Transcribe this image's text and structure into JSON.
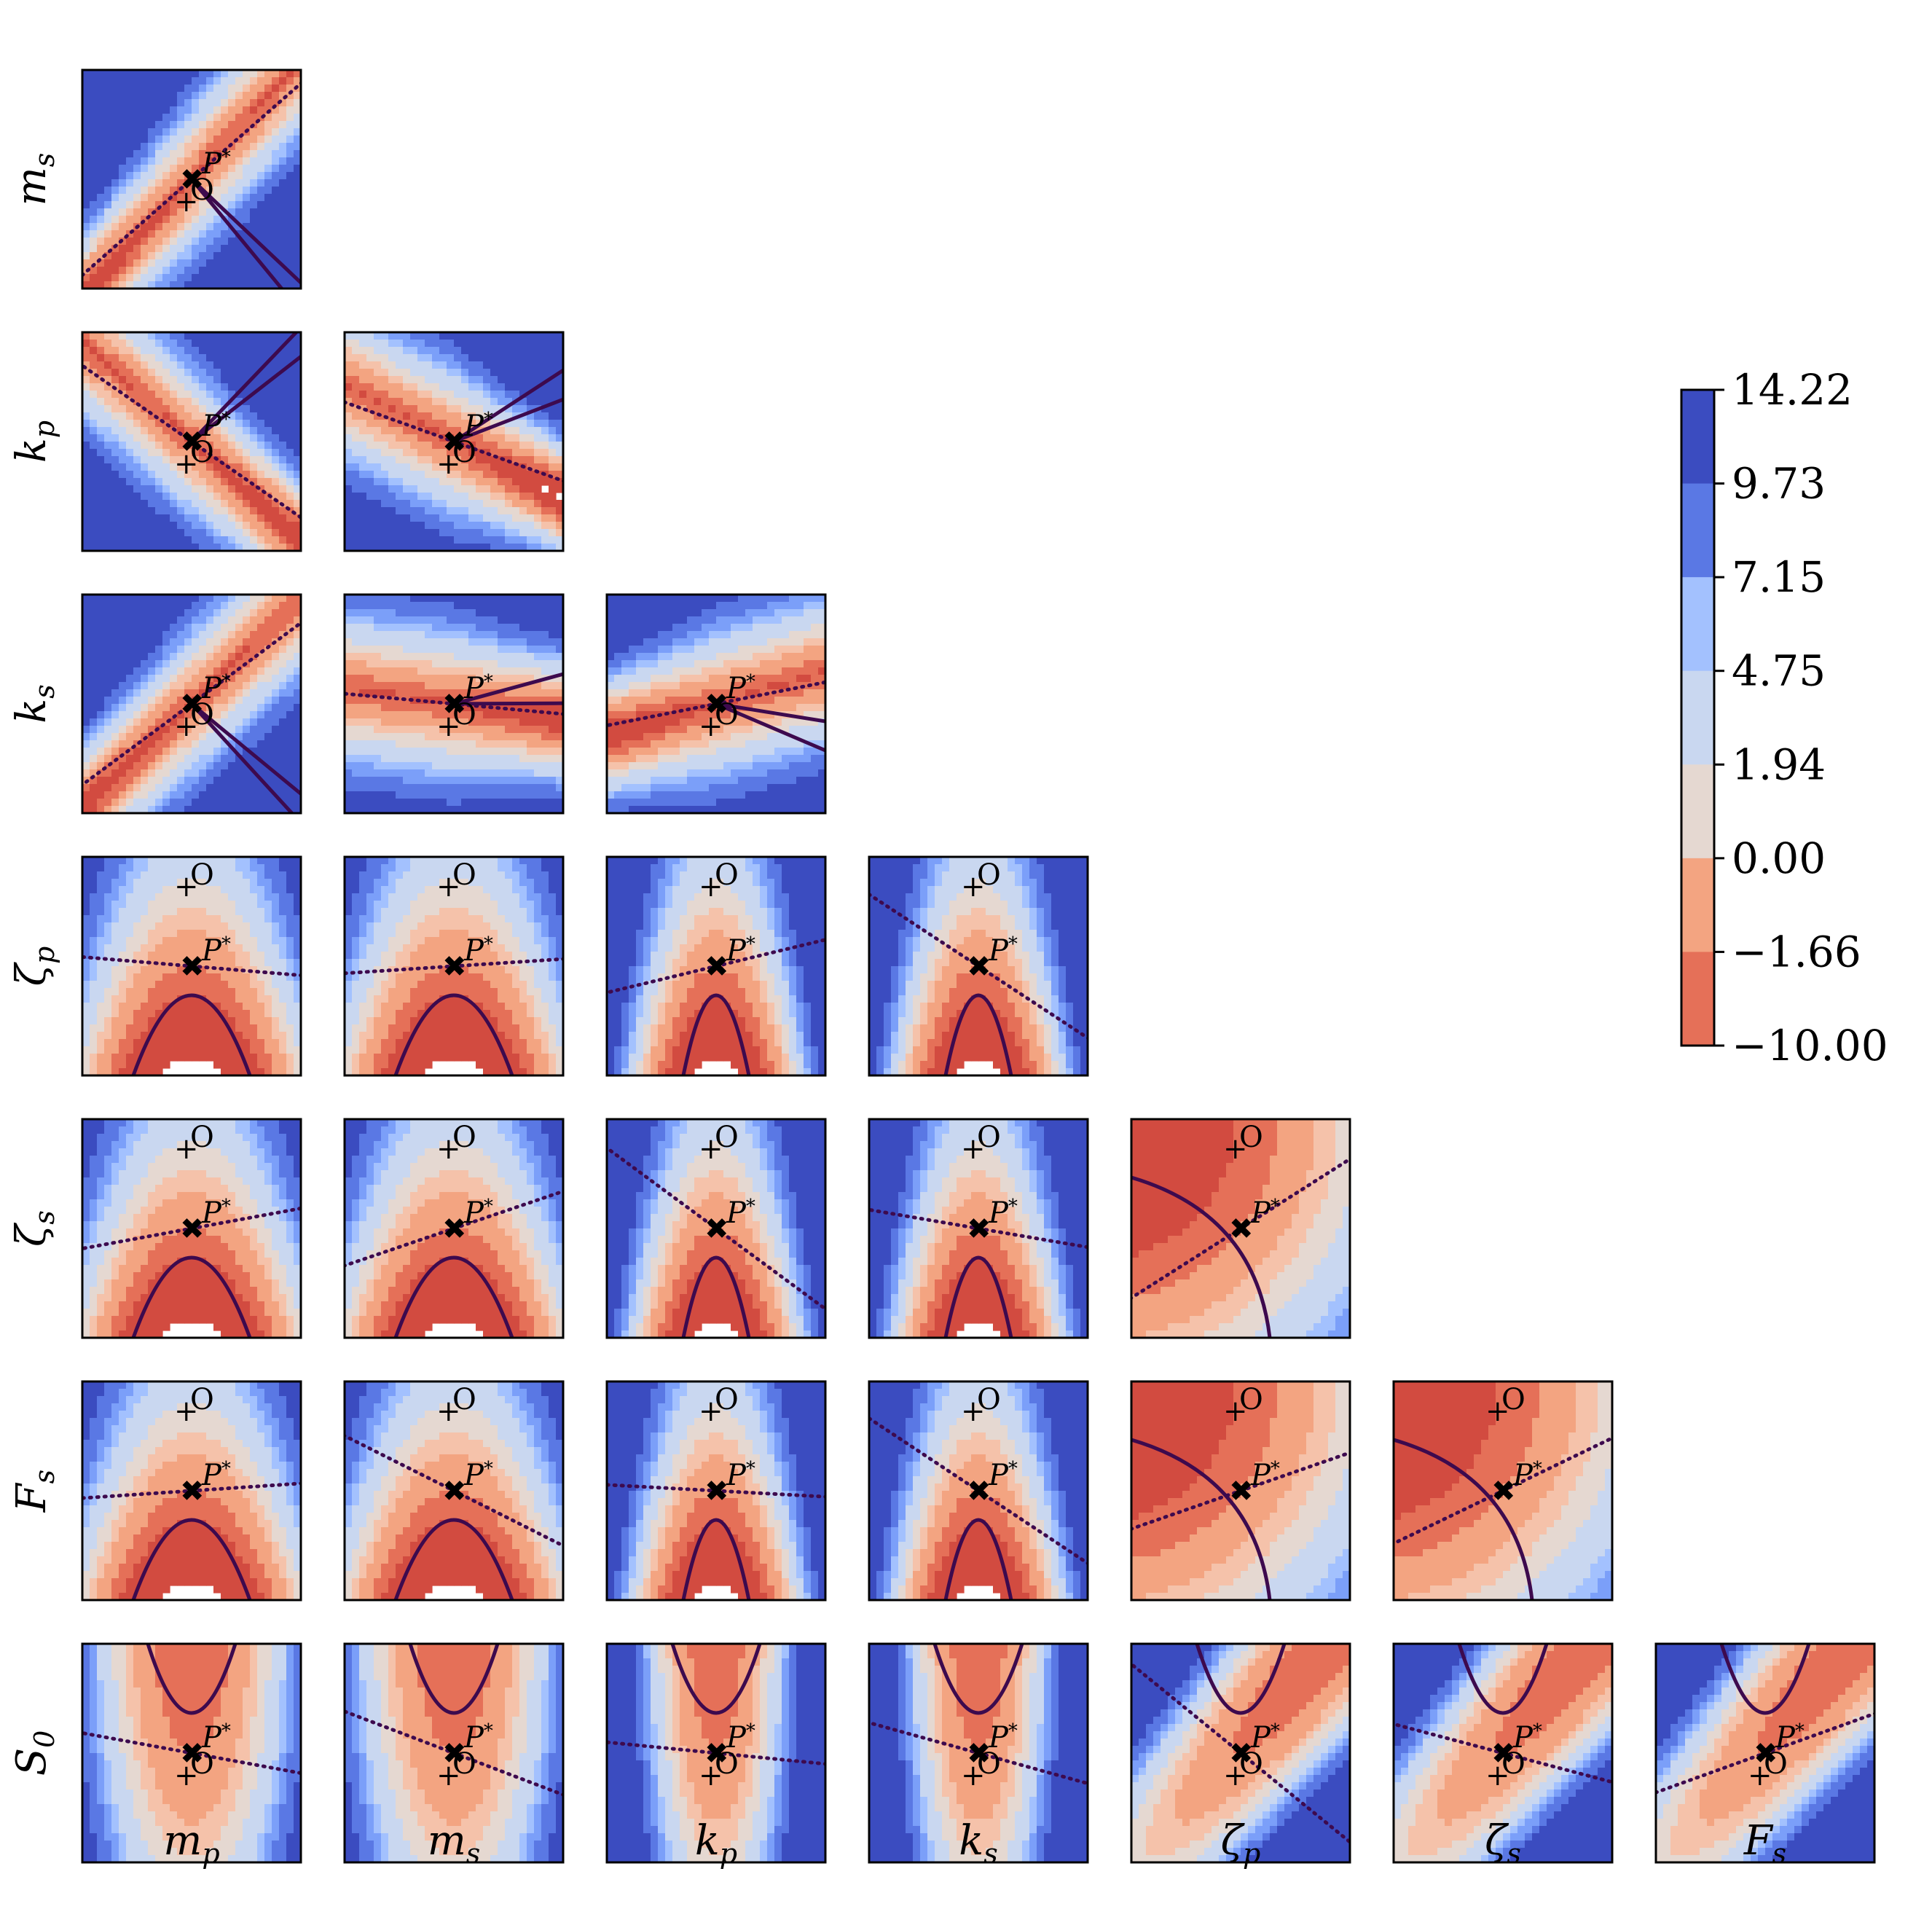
{
  "chart_data": {
    "type": "heatmap",
    "title": "",
    "parameters": [
      "m_p",
      "m_s",
      "k_p",
      "k_s",
      "ζ_p",
      "ζ_s",
      "F_s",
      "S_0"
    ],
    "x_axis_labels": [
      {
        "base": "m",
        "sub": "p"
      },
      {
        "base": "m",
        "sub": "s"
      },
      {
        "base": "k",
        "sub": "p"
      },
      {
        "base": "k",
        "sub": "s"
      },
      {
        "base": "ζ",
        "sub": "p"
      },
      {
        "base": "ζ",
        "sub": "s"
      },
      {
        "base": "F",
        "sub": "s"
      }
    ],
    "y_axis_labels": [
      {
        "base": "m",
        "sub": "s"
      },
      {
        "base": "k",
        "sub": "p"
      },
      {
        "base": "k",
        "sub": "s"
      },
      {
        "base": "ζ",
        "sub": "p"
      },
      {
        "base": "ζ",
        "sub": "s"
      },
      {
        "base": "F",
        "sub": "s"
      },
      {
        "base": "S",
        "sub": "0"
      }
    ],
    "layout": "lower-triangular pairwise contour grid",
    "colorbar": {
      "colormap": "coolwarm (reversed)",
      "levels": [
        "14.22",
        "9.73",
        "7.15",
        "4.75",
        "1.94",
        "0.00",
        "−1.66",
        "−10.00"
      ],
      "placement": "right"
    },
    "markers": {
      "optimum_label": "P",
      "optimum_superscript": "*",
      "optimum_symbol": "✖",
      "origin_label": "O",
      "origin_symbol": "+"
    },
    "annotations": "Each panel: filled contour of the objective over a 2-D slice, solid boundary contour through P*, dotted line through P*, marker P* at the optimum and O at the origin.",
    "colors": {
      "levels": [
        "#3b4cc0",
        "#5a78e4",
        "#7b9ff9",
        "#a3c1fe",
        "#c9d7f0",
        "#e5d8d1",
        "#f5c2aa",
        "#f3a481",
        "#e57058",
        "#d24b40"
      ],
      "contour_line": "#3d0a4e",
      "frame": "#000000"
    }
  }
}
